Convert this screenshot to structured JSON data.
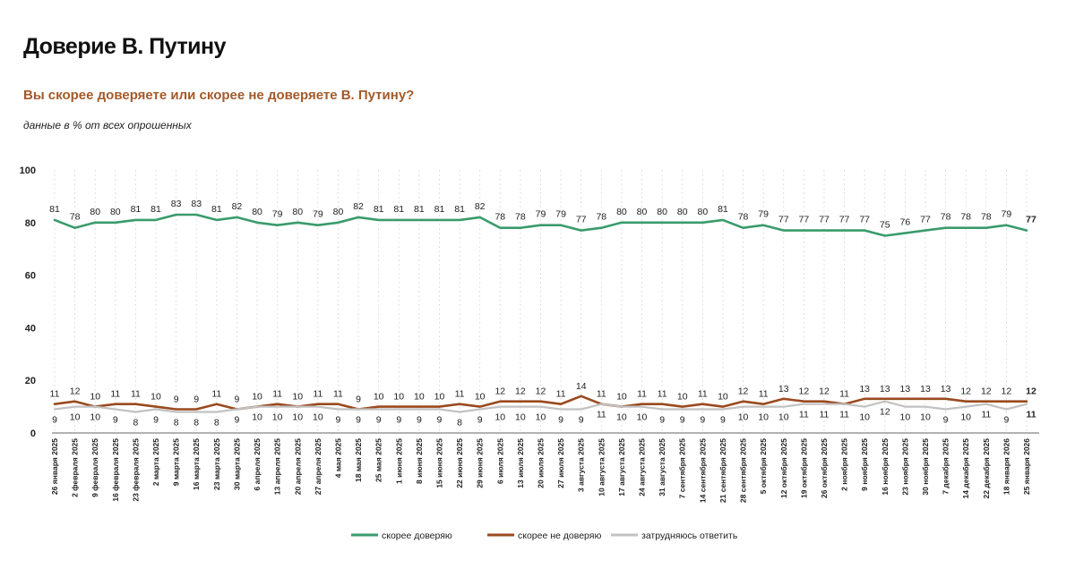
{
  "page": {
    "title": "Доверие В. Путину",
    "question": "Вы скорее доверяете или скорее не доверяете В. Путину?",
    "note": "данные в % от всех опрошенных"
  },
  "chart_data": {
    "type": "line",
    "title": "Доверие В. Путину",
    "subtitle": "Вы скорее доверяете или скорее не доверяете В. Путину?",
    "ylabel": "данные в % от всех опрошенных",
    "xlabel": "",
    "ylim": [
      0,
      100
    ],
    "yticks": [
      0,
      20,
      40,
      60,
      80,
      100
    ],
    "grid": "vertical dashed",
    "legend_position": "bottom-center",
    "categories": [
      "26 января 2025",
      "2 февраля 2025",
      "9 февраля 2025",
      "16 февраля 2025",
      "23 февраля 2025",
      "2 марта 2025",
      "9 марта 2025",
      "16 марта 2025",
      "23 марта 2025",
      "30 марта 2025",
      "6 апреля 2025",
      "13 апреля 2025",
      "20 апреля 2025",
      "27 апреля 2025",
      "4 мая 2025",
      "18 мая 2025",
      "25 мая 2025",
      "1 июня 2025",
      "8 июня 2025",
      "15 июня 2025",
      "22 июня 2025",
      "29 июня 2025",
      "6 июля 2025",
      "13 июля 2025",
      "20 июля 2025",
      "27 июля 2025",
      "3 августа 2025",
      "10 августа 2025",
      "17 августа 2025",
      "24 августа 2025",
      "31 августа 2025",
      "7 сентября 2025",
      "14 сентября 2025",
      "21 сентября 2025",
      "28 сентября 2025",
      "5 октября 2025",
      "12 октября 2025",
      "19 октября 2025",
      "26 октября 2025",
      "2 ноября 2025",
      "9 ноября 2025",
      "16 ноября 2025",
      "23 ноября 2025",
      "30 ноября 2025",
      "7 декабря 2025",
      "14 декабря 2025",
      "22 декабря 2025",
      "18 января 2026",
      "25 января 2026"
    ],
    "series": [
      {
        "name": "скорее доверяю",
        "color": "#3a9b6b",
        "values": [
          81,
          78,
          80,
          80,
          81,
          81,
          83,
          83,
          81,
          82,
          80,
          79,
          80,
          79,
          80,
          82,
          81,
          81,
          81,
          81,
          81,
          82,
          78,
          78,
          79,
          79,
          77,
          78,
          80,
          80,
          80,
          80,
          80,
          81,
          78,
          79,
          77,
          77,
          77,
          77,
          77,
          75,
          76,
          77,
          78,
          78,
          78,
          79,
          77
        ]
      },
      {
        "name": "скорее не доверяю",
        "color": "#9a4a1f",
        "values": [
          11,
          12,
          10,
          11,
          11,
          10,
          9,
          9,
          11,
          9,
          10,
          11,
          10,
          11,
          11,
          9,
          10,
          10,
          10,
          10,
          11,
          10,
          12,
          12,
          12,
          11,
          14,
          11,
          10,
          11,
          11,
          10,
          11,
          10,
          12,
          11,
          13,
          12,
          12,
          11,
          13,
          13,
          13,
          13,
          13,
          12,
          12,
          12,
          12
        ]
      },
      {
        "name": "затрудняюсь ответить",
        "color": "#c2c2c2",
        "values": [
          9,
          10,
          10,
          9,
          8,
          9,
          8,
          8,
          8,
          9,
          10,
          10,
          10,
          10,
          9,
          9,
          9,
          9,
          9,
          9,
          8,
          9,
          10,
          10,
          10,
          9,
          9,
          11,
          10,
          10,
          9,
          9,
          9,
          9,
          10,
          10,
          10,
          11,
          11,
          11,
          10,
          12,
          10,
          10,
          9,
          10,
          11,
          9,
          11
        ]
      }
    ]
  }
}
